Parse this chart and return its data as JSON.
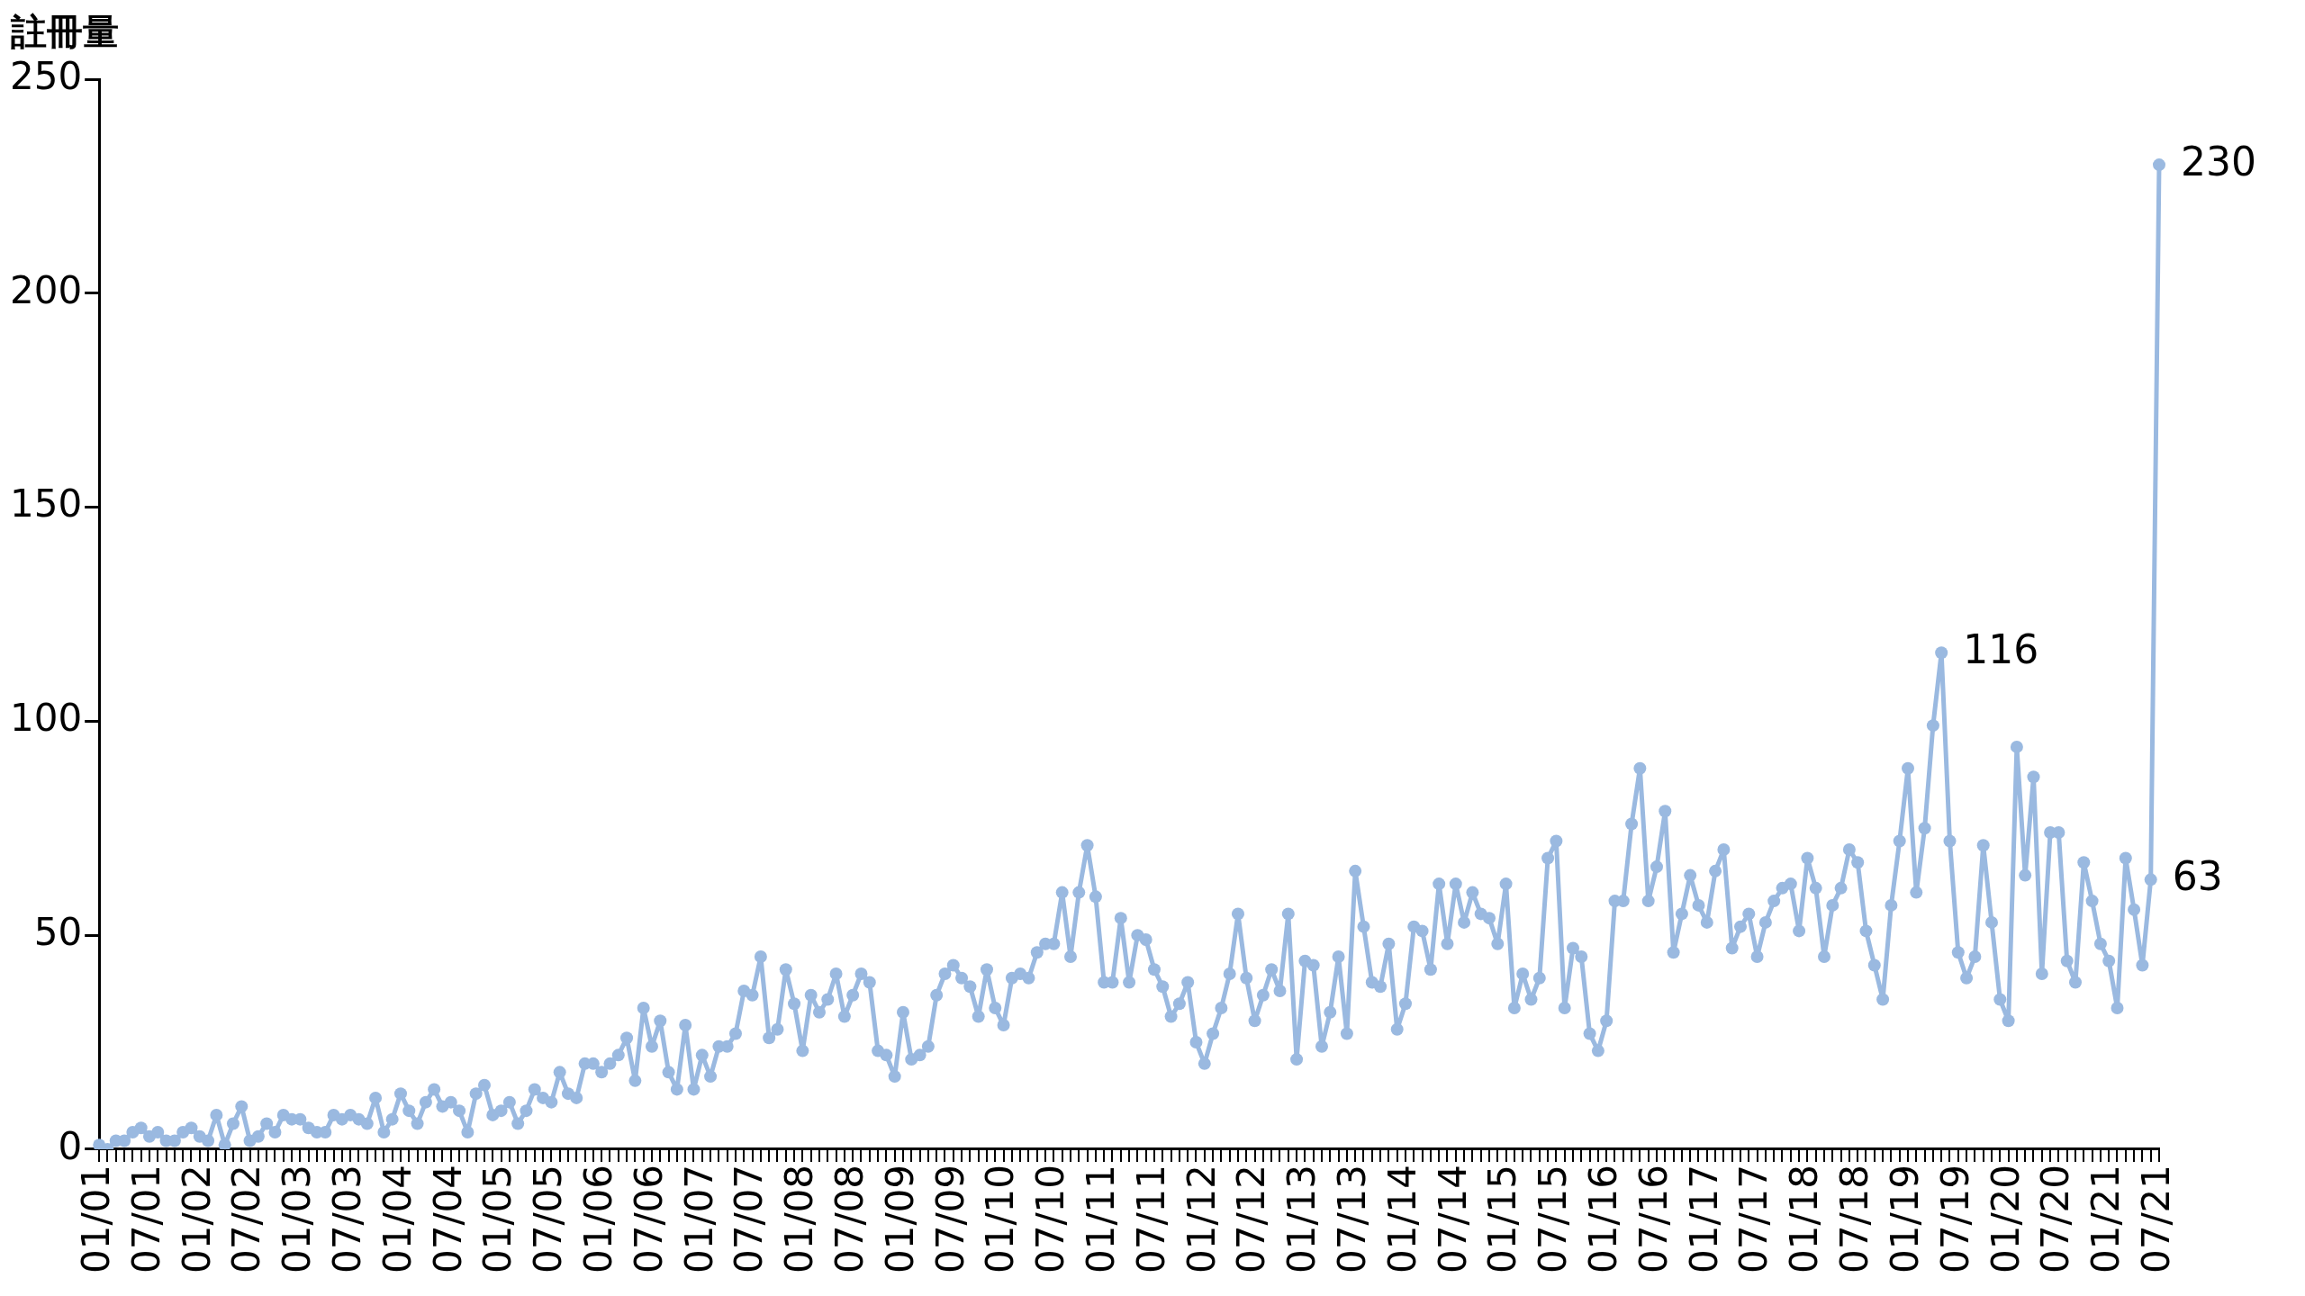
{
  "chart_data": {
    "type": "line",
    "ylabel": "註冊量",
    "marker": "circle",
    "color": "#9ab9e0",
    "ylim": [
      0,
      250
    ],
    "yticks": [
      0,
      50,
      100,
      150,
      200,
      250
    ],
    "categories": [
      "01/01",
      null,
      null,
      null,
      null,
      null,
      "07/01",
      null,
      null,
      null,
      null,
      null,
      "01/02",
      null,
      null,
      null,
      null,
      null,
      "07/02",
      null,
      null,
      null,
      null,
      null,
      "01/03",
      null,
      null,
      null,
      null,
      null,
      "07/03",
      null,
      null,
      null,
      null,
      null,
      "01/04",
      null,
      null,
      null,
      null,
      null,
      "07/04",
      null,
      null,
      null,
      null,
      null,
      "01/05",
      null,
      null,
      null,
      null,
      null,
      "07/05",
      null,
      null,
      null,
      null,
      null,
      "01/06",
      null,
      null,
      null,
      null,
      null,
      "07/06",
      null,
      null,
      null,
      null,
      null,
      "01/07",
      null,
      null,
      null,
      null,
      null,
      "07/07",
      null,
      null,
      null,
      null,
      null,
      "01/08",
      null,
      null,
      null,
      null,
      null,
      "07/08",
      null,
      null,
      null,
      null,
      null,
      "01/09",
      null,
      null,
      null,
      null,
      null,
      "07/09",
      null,
      null,
      null,
      null,
      null,
      "01/10",
      null,
      null,
      null,
      null,
      null,
      "07/10",
      null,
      null,
      null,
      null,
      null,
      "01/11",
      null,
      null,
      null,
      null,
      null,
      "07/11",
      null,
      null,
      null,
      null,
      null,
      "01/12",
      null,
      null,
      null,
      null,
      null,
      "07/12",
      null,
      null,
      null,
      null,
      null,
      "01/13",
      null,
      null,
      null,
      null,
      null,
      "07/13",
      null,
      null,
      null,
      null,
      null,
      "01/14",
      null,
      null,
      null,
      null,
      null,
      "07/14",
      null,
      null,
      null,
      null,
      null,
      "01/15",
      null,
      null,
      null,
      null,
      null,
      "07/15",
      null,
      null,
      null,
      null,
      null,
      "01/16",
      null,
      null,
      null,
      null,
      null,
      "07/16",
      null,
      null,
      null,
      null,
      null,
      "01/17",
      null,
      null,
      null,
      null,
      null,
      "07/17",
      null,
      null,
      null,
      null,
      null,
      "01/18",
      null,
      null,
      null,
      null,
      null,
      "07/18",
      null,
      null,
      null,
      null,
      null,
      "01/19",
      null,
      null,
      null,
      null,
      null,
      "07/19",
      null,
      null,
      null,
      null,
      null,
      "01/20",
      null,
      null,
      null,
      null,
      null,
      "07/20",
      null,
      null,
      null,
      null,
      null,
      "01/21",
      null,
      null,
      null,
      null,
      null,
      "07/21"
    ],
    "values": [
      1,
      0,
      2,
      2,
      4,
      5,
      3,
      4,
      2,
      2,
      4,
      5,
      3,
      2,
      8,
      1,
      6,
      10,
      2,
      3,
      6,
      4,
      8,
      7,
      7,
      5,
      4,
      4,
      8,
      7,
      8,
      7,
      6,
      12,
      4,
      7,
      13,
      9,
      6,
      11,
      14,
      10,
      11,
      9,
      4,
      13,
      15,
      8,
      9,
      11,
      6,
      9,
      14,
      12,
      11,
      18,
      13,
      12,
      20,
      20,
      18,
      20,
      22,
      26,
      16,
      33,
      24,
      30,
      18,
      14,
      29,
      14,
      22,
      17,
      24,
      24,
      27,
      37,
      36,
      45,
      26,
      28,
      42,
      34,
      23,
      36,
      32,
      35,
      41,
      31,
      36,
      41,
      39,
      23,
      22,
      17,
      32,
      21,
      22,
      24,
      36,
      41,
      43,
      40,
      38,
      31,
      42,
      33,
      29,
      40,
      41,
      40,
      46,
      48,
      48,
      60,
      45,
      60,
      71,
      59,
      39,
      39,
      54,
      39,
      50,
      49,
      42,
      38,
      31,
      34,
      39,
      25,
      20,
      27,
      33,
      41,
      55,
      40,
      30,
      36,
      42,
      37,
      55,
      21,
      44,
      43,
      24,
      32,
      45,
      27,
      65,
      52,
      39,
      38,
      48,
      28,
      34,
      52,
      51,
      42,
      62,
      48,
      62,
      53,
      60,
      55,
      54,
      48,
      62,
      33,
      41,
      35,
      40,
      68,
      72,
      33,
      47,
      45,
      27,
      23,
      30,
      58,
      58,
      76,
      89,
      58,
      66,
      79,
      46,
      55,
      64,
      57,
      53,
      65,
      70,
      47,
      52,
      55,
      45,
      53,
      58,
      61,
      62,
      51,
      68,
      61,
      45,
      57,
      61,
      70,
      67,
      51,
      43,
      35,
      57,
      72,
      89,
      60,
      75,
      99,
      116,
      72,
      46,
      40,
      45,
      71,
      53,
      35,
      30,
      94,
      64,
      87,
      41,
      74,
      74,
      44,
      39,
      67,
      58,
      48,
      44,
      33,
      68,
      56,
      43,
      63,
      230
    ],
    "value_labels": [
      null,
      null,
      null,
      null,
      null,
      null,
      null,
      null,
      null,
      null,
      null,
      null,
      null,
      null,
      null,
      null,
      null,
      null,
      null,
      null,
      null,
      null,
      null,
      null,
      null,
      null,
      null,
      null,
      null,
      null,
      null,
      null,
      null,
      null,
      null,
      null,
      null,
      null,
      null,
      null,
      null,
      null,
      null,
      null,
      null,
      null,
      null,
      null,
      null,
      null,
      null,
      null,
      null,
      null,
      null,
      null,
      null,
      null,
      null,
      null,
      null,
      null,
      null,
      null,
      null,
      null,
      null,
      null,
      null,
      null,
      null,
      null,
      null,
      null,
      null,
      null,
      null,
      null,
      null,
      null,
      null,
      null,
      null,
      null,
      null,
      null,
      null,
      null,
      null,
      null,
      null,
      null,
      null,
      null,
      null,
      null,
      null,
      null,
      null,
      null,
      null,
      null,
      null,
      null,
      null,
      null,
      null,
      null,
      null,
      null,
      null,
      null,
      null,
      null,
      null,
      null,
      null,
      null,
      null,
      null,
      null,
      null,
      null,
      null,
      null,
      null,
      null,
      null,
      null,
      null,
      null,
      null,
      null,
      null,
      null,
      null,
      null,
      null,
      null,
      null,
      null,
      null,
      null,
      null,
      null,
      null,
      null,
      null,
      null,
      null,
      null,
      null,
      null,
      null,
      null,
      null,
      null,
      null,
      null,
      null,
      null,
      null,
      null,
      null,
      null,
      null,
      null,
      null,
      null,
      null,
      null,
      null,
      null,
      null,
      null,
      null,
      null,
      null,
      null,
      null,
      null,
      null,
      null,
      null,
      null,
      null,
      null,
      null,
      null,
      null,
      null,
      null,
      null,
      null,
      null,
      null,
      null,
      null,
      null,
      null,
      null,
      null,
      null,
      null,
      null,
      null,
      null,
      null,
      null,
      null,
      null,
      null,
      null,
      null,
      null,
      null,
      null,
      null,
      null,
      null,
      "116",
      null,
      null,
      null,
      null,
      null,
      null,
      null,
      null,
      null,
      null,
      null,
      null,
      null,
      null,
      null,
      null,
      null,
      null,
      null,
      null,
      null,
      null,
      null,
      null,
      "63",
      "230"
    ]
  }
}
